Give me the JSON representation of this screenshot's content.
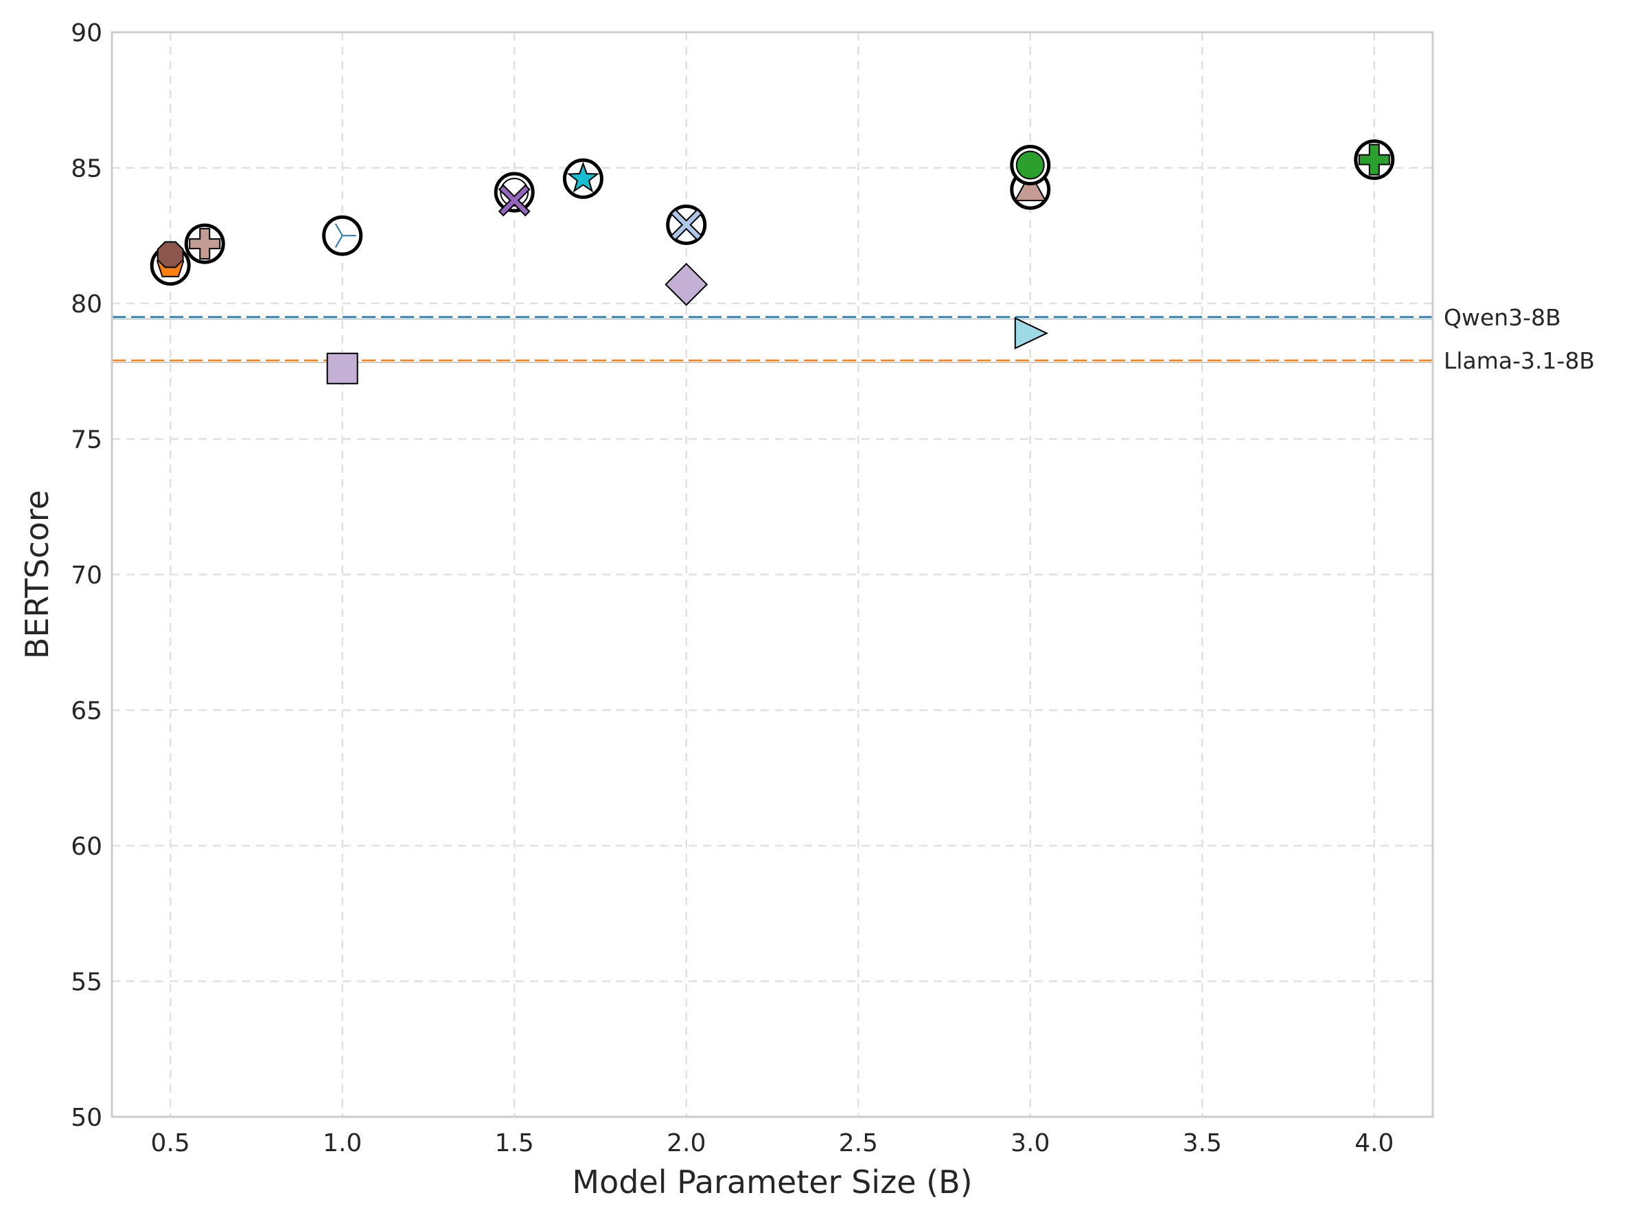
{
  "chart_data": {
    "type": "scatter",
    "title": "",
    "xlabel": "Model Parameter Size (B)",
    "ylabel": "BERTScore",
    "xlim": [
      0.33,
      4.17
    ],
    "ylim": [
      50,
      90
    ],
    "x_ticks": [
      "0.5",
      "1.0",
      "1.5",
      "2.0",
      "2.5",
      "3.0",
      "3.5",
      "4.0"
    ],
    "y_ticks": [
      "50",
      "55",
      "60",
      "65",
      "70",
      "75",
      "80",
      "85",
      "90"
    ],
    "grid": true,
    "reference_lines": [
      {
        "label": "Qwen3-8B",
        "y": 79.5,
        "color": "#1f77b4"
      },
      {
        "label": "Llama-3.1-8B",
        "y": 77.9,
        "color": "#ff7f0e"
      }
    ],
    "points": [
      {
        "x": 0.5,
        "y": 81.4,
        "marker": "pentagon",
        "color": "#ff7f0e",
        "highlighted": true
      },
      {
        "x": 0.5,
        "y": 81.8,
        "marker": "octagon",
        "color": "#8c564b",
        "highlighted": false
      },
      {
        "x": 0.6,
        "y": 82.3,
        "marker": "pentagon",
        "color": "#bcbd22",
        "highlighted": false
      },
      {
        "x": 0.6,
        "y": 82.2,
        "marker": "plus",
        "color": "#c49c94",
        "highlighted": true
      },
      {
        "x": 1.0,
        "y": 82.5,
        "marker": "tri",
        "color": "#1f77b4",
        "highlighted": true
      },
      {
        "x": 1.0,
        "y": 77.6,
        "marker": "square",
        "color": "#c5b0d5",
        "highlighted": false
      },
      {
        "x": 1.5,
        "y": 84.1,
        "marker": "circle",
        "color": "#ffffff",
        "highlighted": true
      },
      {
        "x": 1.5,
        "y": 83.8,
        "marker": "x",
        "color": "#9467bd",
        "highlighted": false
      },
      {
        "x": 1.7,
        "y": 84.6,
        "marker": "star",
        "color": "#17becf",
        "highlighted": true
      },
      {
        "x": 2.0,
        "y": 82.9,
        "marker": "x",
        "color": "#aec7e8",
        "highlighted": true
      },
      {
        "x": 2.0,
        "y": 80.7,
        "marker": "diamond",
        "color": "#c5b0d5",
        "highlighted": false
      },
      {
        "x": 3.0,
        "y": 84.2,
        "marker": "triangle-up",
        "color": "#c49c94",
        "highlighted": true
      },
      {
        "x": 3.0,
        "y": 85.1,
        "marker": "circle",
        "color": "#2ca02c",
        "highlighted": true
      },
      {
        "x": 3.0,
        "y": 78.9,
        "marker": "triangle-right",
        "color": "#9edae5",
        "highlighted": false
      },
      {
        "x": 4.0,
        "y": 85.3,
        "marker": "plus",
        "color": "#2ca02c",
        "highlighted": true
      }
    ]
  }
}
